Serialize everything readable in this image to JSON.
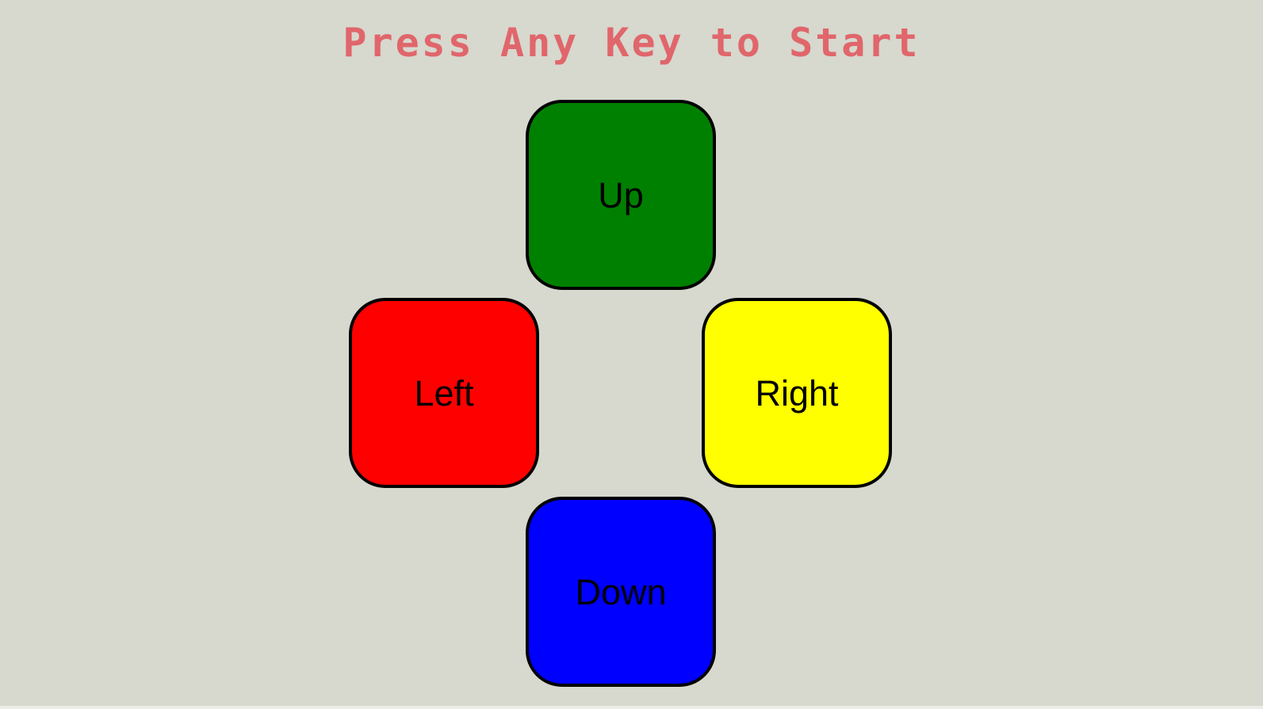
{
  "game": {
    "title": "Press Any Key to Start",
    "title_color": "#e0666b",
    "background_color": "#d7d8ce"
  },
  "pads": {
    "up": {
      "label": "Up",
      "color": "#008000"
    },
    "left": {
      "label": "Left",
      "color": "#ff0000"
    },
    "right": {
      "label": "Right",
      "color": "#ffff00"
    },
    "down": {
      "label": "Down",
      "color": "#0000ff"
    }
  }
}
